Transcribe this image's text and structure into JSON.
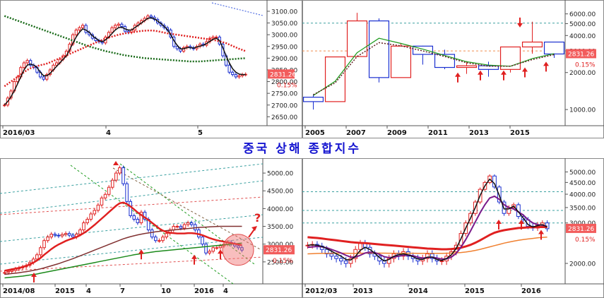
{
  "title": "중국 상해 종합지수",
  "colors": {
    "up": "#e02020",
    "down": "#1a2fd0",
    "price_box": "#f25c5c",
    "price_text": "#ffffff",
    "pct_text": "#e02020"
  },
  "chart_data": [
    {
      "id": "daily",
      "type": "candlestick",
      "x_ticks": [
        "2016/03",
        "4",
        "5"
      ],
      "y_ticks": [
        3100,
        3050,
        3000,
        2950,
        2900,
        2850,
        2800,
        2750,
        2700,
        2650
      ],
      "y_tick_labels": [
        "3100.00",
        "3050.00",
        "3000.00",
        "2950.00",
        "2900.00",
        "2850.00",
        "2800.00",
        "2750.00",
        "2700.00",
        "2650.00"
      ],
      "ylim": [
        2630,
        3130
      ],
      "last_price": "2831.26",
      "change_pct": "0.15%",
      "close": [
        2700,
        2730,
        2760,
        2800,
        2820,
        2860,
        2880,
        2890,
        2870,
        2860,
        2840,
        2820,
        2810,
        2830,
        2850,
        2870,
        2880,
        2895,
        2910,
        2930,
        2960,
        3000,
        3020,
        3030,
        3040,
        3010,
        3000,
        2985,
        2975,
        2970,
        2965,
        2990,
        3010,
        3030,
        3040,
        3045,
        3035,
        3015,
        3010,
        3020,
        3040,
        3050,
        3060,
        3070,
        3080,
        3075,
        3065,
        3050,
        3040,
        3030,
        3020,
        2990,
        2950,
        2940,
        2930,
        2945,
        2950,
        2945,
        2940,
        2950,
        2960,
        2955,
        2970,
        2985,
        2990,
        2990,
        2960,
        2910,
        2870,
        2840,
        2830,
        2820,
        2825,
        2830,
        2831.26
      ],
      "ma_black": [
        2700,
        2715,
        2735,
        2760,
        2790,
        2820,
        2850,
        2870,
        2875,
        2870,
        2860,
        2840,
        2825,
        2825,
        2835,
        2850,
        2865,
        2880,
        2895,
        2910,
        2935,
        2965,
        2990,
        3010,
        3025,
        3020,
        3010,
        2995,
        2985,
        2975,
        2970,
        2978,
        2990,
        3005,
        3020,
        3030,
        3032,
        3025,
        3020,
        3020,
        3030,
        3040,
        3050,
        3060,
        3070,
        3072,
        3068,
        3058,
        3048,
        3035,
        3022,
        3000,
        2975,
        2955,
        2940,
        2940,
        2945,
        2945,
        2943,
        2947,
        2952,
        2955,
        2962,
        2972,
        2980,
        2985,
        2975,
        2945,
        2910,
        2880,
        2855,
        2840,
        2832,
        2830,
        2830
      ],
      "ma_red": [
        2780,
        2790,
        2800,
        2810,
        2820,
        2830,
        2840,
        2850,
        2857,
        2862,
        2866,
        2870,
        2873,
        2877,
        2882,
        2888,
        2894,
        2900,
        2906,
        2912,
        2918,
        2924,
        2930,
        2936,
        2942,
        2948,
        2954,
        2960,
        2966,
        2972,
        2978,
        2984,
        2988,
        2992,
        2996,
        3000,
        3003,
        3006,
        3008,
        3010,
        3012,
        3014,
        3016,
        3017,
        3018,
        3018,
        3017,
        3015,
        3012,
        3009,
        3006,
        3004,
        3002,
        3000,
        2998,
        2996,
        2994,
        2992,
        2990,
        2988,
        2986,
        2984,
        2982,
        2980,
        2978,
        2975,
        2972,
        2968,
        2964,
        2958,
        2952,
        2946,
        2940,
        2935,
        2930
      ],
      "ma_green": [
        3080,
        3075,
        3070,
        3065,
        3060,
        3055,
        3050,
        3045,
        3040,
        3035,
        3030,
        3025,
        3020,
        3015,
        3010,
        3005,
        3000,
        2995,
        2990,
        2985,
        2980,
        2975,
        2970,
        2965,
        2960,
        2955,
        2950,
        2946,
        2942,
        2938,
        2934,
        2930,
        2927,
        2924,
        2921,
        2918,
        2915,
        2912,
        2910,
        2908,
        2906,
        2904,
        2902,
        2900,
        2899,
        2898,
        2897,
        2896,
        2895,
        2894,
        2893,
        2892,
        2891,
        2890,
        2889,
        2888,
        2887,
        2886,
        2886,
        2886,
        2886,
        2887,
        2888,
        2889,
        2890,
        2891,
        2892,
        2893,
        2894,
        2895,
        2896,
        2897,
        2898,
        2899,
        2900
      ]
    },
    {
      "id": "yearly",
      "type": "candlestick",
      "x_ticks": [
        "2005",
        "2007",
        "2009",
        "2011",
        "2013",
        "2015"
      ],
      "y_ticks": [
        6000,
        5000,
        4000,
        3000,
        2000,
        1000
      ],
      "y_tick_labels": [
        "6000.00",
        "5000.00",
        "4000.00",
        "3000.00",
        "2000.00",
        "1000.00"
      ],
      "log_scale": true,
      "ylim": [
        800,
        7000
      ],
      "last_price": "2831.26",
      "change_pct": "0.15%",
      "years": [
        2005,
        2006,
        2007,
        2008,
        2009,
        2010,
        2011,
        2012,
        2013,
        2014,
        2015,
        2016
      ],
      "ohlc": [
        [
          1260,
          1330,
          1000,
          1160
        ],
        [
          1160,
          2700,
          1150,
          2680
        ],
        [
          2700,
          6120,
          2700,
          5260
        ],
        [
          5260,
          5520,
          1660,
          1820
        ],
        [
          1820,
          3480,
          1840,
          3280
        ],
        [
          3280,
          3300,
          2320,
          2810
        ],
        [
          2810,
          3070,
          2130,
          2200
        ],
        [
          2200,
          2480,
          1950,
          2270
        ],
        [
          2270,
          2450,
          1850,
          2120
        ],
        [
          2120,
          3240,
          2000,
          3230
        ],
        [
          3230,
          5180,
          2850,
          3540
        ],
        [
          3540,
          3540,
          2630,
          2831
        ]
      ],
      "ma_green": [
        1300,
        1700,
        2900,
        3800,
        3450,
        3100,
        2750,
        2450,
        2300,
        2250,
        2600,
        2850
      ],
      "ma_dark": [
        1320,
        1650,
        2700,
        3500,
        3300,
        3000,
        2700,
        2400,
        2250,
        2250,
        2550,
        2800
      ],
      "hlines": [
        5050,
        3000
      ]
    },
    {
      "id": "weekly",
      "type": "candlestick",
      "x_ticks": [
        "2014/08",
        "2015",
        "4",
        "7",
        "10",
        "2016",
        "4"
      ],
      "y_ticks": [
        5000,
        4500,
        4000,
        3500,
        3000,
        2500
      ],
      "y_tick_labels": [
        "5000.00",
        "4500.00",
        "4000.00",
        "3500.00",
        "3000.00",
        "2500.00"
      ],
      "ylim": [
        2000,
        5300
      ],
      "last_price": "2831.26",
      "change_pct": "0.15%",
      "annotation": "?",
      "close": [
        2200,
        2230,
        2260,
        2300,
        2330,
        2360,
        2400,
        2480,
        2580,
        2700,
        2900,
        3100,
        3200,
        3280,
        3250,
        3230,
        3270,
        3300,
        3250,
        3200,
        3280,
        3400,
        3600,
        3700,
        3850,
        3950,
        4100,
        4300,
        4400,
        4600,
        4800,
        5000,
        5150,
        4700,
        4200,
        3800,
        3700,
        3600,
        3900,
        3700,
        3400,
        3200,
        3100,
        3100,
        3200,
        3300,
        3400,
        3500,
        3500,
        3450,
        3550,
        3600,
        3550,
        3400,
        3200,
        3000,
        2750,
        2800,
        2900,
        2900,
        2950,
        3000,
        3050,
        3000,
        2950,
        2900,
        2831
      ],
      "ma_red": [
        2250,
        2270,
        2290,
        2310,
        2330,
        2360,
        2390,
        2430,
        2480,
        2540,
        2610,
        2700,
        2780,
        2860,
        2930,
        2990,
        3040,
        3090,
        3130,
        3160,
        3200,
        3250,
        3310,
        3380,
        3460,
        3540,
        3630,
        3720,
        3810,
        3900,
        3990,
        4080,
        4150,
        4170,
        4130,
        4060,
        3980,
        3890,
        3820,
        3750,
        3680,
        3600,
        3520,
        3440,
        3380,
        3340,
        3320,
        3310,
        3300,
        3300,
        3300,
        3310,
        3310,
        3300,
        3280,
        3250,
        3210,
        3170,
        3140,
        3110,
        3090,
        3070,
        3050,
        3030,
        3010,
        2990,
        2970
      ],
      "ma_brown": [
        2150,
        2160,
        2170,
        2180,
        2195,
        2210,
        2225,
        2240,
        2260,
        2280,
        2305,
        2330,
        2360,
        2390,
        2420,
        2450,
        2485,
        2520,
        2555,
        2590,
        2630,
        2670,
        2710,
        2750,
        2790,
        2830,
        2870,
        2910,
        2950,
        2990,
        3030,
        3070,
        3110,
        3150,
        3180,
        3210,
        3235,
        3260,
        3280,
        3300,
        3315,
        3330,
        3345,
        3360,
        3370,
        3380,
        3390,
        3400,
        3410,
        3420,
        3430,
        3440,
        3450,
        3460,
        3470,
        3475,
        3480,
        3485,
        3490,
        3495,
        3500,
        3500,
        3500,
        3500,
        3500,
        3500,
        3500
      ],
      "ma_green": [
        2050,
        2060,
        2070,
        2080,
        2090,
        2100,
        2115,
        2130,
        2145,
        2160,
        2180,
        2200,
        2220,
        2240,
        2260,
        2280,
        2300,
        2320,
        2340,
        2360,
        2380,
        2400,
        2420,
        2440,
        2460,
        2480,
        2500,
        2520,
        2540,
        2560,
        2580,
        2600,
        2620,
        2640,
        2660,
        2680,
        2700,
        2715,
        2730,
        2745,
        2760,
        2775,
        2790,
        2800,
        2810,
        2820,
        2830,
        2840,
        2850,
        2860,
        2870,
        2880,
        2890,
        2900,
        2910,
        2920,
        2930,
        2940,
        2950,
        2960,
        2970,
        2980,
        2990,
        3000,
        3010,
        3020,
        3030
      ]
    },
    {
      "id": "monthly",
      "type": "candlestick",
      "x_ticks": [
        "2012/03",
        "2013",
        "2014",
        "2015",
        "2016"
      ],
      "y_ticks": [
        5000,
        4500,
        4000,
        3500,
        3000,
        2000
      ],
      "y_tick_labels": [
        "5000.00",
        "4500.00",
        "4000.00",
        "3500.00",
        "3000.00",
        "2000.00"
      ],
      "log_scale": true,
      "ylim": [
        1700,
        5500
      ],
      "last_price": "2831.26",
      "change_pct": "0.15%",
      "close": [
        2400,
        2420,
        2380,
        2300,
        2200,
        2150,
        2100,
        2050,
        2000,
        2100,
        2300,
        2450,
        2350,
        2200,
        2150,
        2050,
        2000,
        2100,
        2200,
        2150,
        2250,
        2150,
        2100,
        2050,
        2100,
        2200,
        2100,
        2050,
        2050,
        2150,
        2250,
        2400,
        2700,
        3000,
        3300,
        3700,
        4200,
        4500,
        4800,
        4300,
        3700,
        3300,
        3500,
        3600,
        3200,
        3100,
        2900,
        2850,
        2950,
        3000,
        2831
      ],
      "ma_black": [
        2400,
        2410,
        2400,
        2370,
        2320,
        2260,
        2200,
        2150,
        2080,
        2070,
        2150,
        2280,
        2350,
        2300,
        2220,
        2120,
        2050,
        2080,
        2150,
        2180,
        2200,
        2180,
        2140,
        2090,
        2080,
        2130,
        2130,
        2080,
        2060,
        2100,
        2180,
        2320,
        2560,
        2850,
        3150,
        3500,
        3950,
        4350,
        4650,
        4450,
        3950,
        3450,
        3450,
        3550,
        3350,
        3150,
        2950,
        2880,
        2920,
        2950,
        2880
      ],
      "ma_purple": [
        2350,
        2360,
        2370,
        2360,
        2340,
        2300,
        2260,
        2220,
        2170,
        2130,
        2130,
        2170,
        2220,
        2240,
        2230,
        2190,
        2140,
        2120,
        2130,
        2150,
        2170,
        2170,
        2160,
        2130,
        2110,
        2120,
        2130,
        2110,
        2090,
        2090,
        2130,
        2210,
        2350,
        2540,
        2770,
        3030,
        3320,
        3600,
        3850,
        3920,
        3800,
        3600,
        3500,
        3450,
        3350,
        3250,
        3100,
        3000,
        2950,
        2930,
        2900
      ],
      "ma_red": [
        2600,
        2590,
        2580,
        2565,
        2550,
        2535,
        2520,
        2505,
        2490,
        2475,
        2465,
        2455,
        2450,
        2440,
        2430,
        2420,
        2410,
        2400,
        2390,
        2380,
        2370,
        2360,
        2350,
        2340,
        2330,
        2320,
        2315,
        2310,
        2305,
        2305,
        2310,
        2320,
        2340,
        2370,
        2410,
        2460,
        2520,
        2590,
        2660,
        2720,
        2760,
        2790,
        2810,
        2830,
        2850,
        2860,
        2870,
        2875,
        2880,
        2880,
        2880
      ],
      "ma_orange": [
        2200,
        2205,
        2210,
        2212,
        2214,
        2215,
        2216,
        2216,
        2215,
        2214,
        2214,
        2215,
        2217,
        2218,
        2218,
        2217,
        2216,
        2215,
        2215,
        2215,
        2215,
        2215,
        2215,
        2214,
        2213,
        2213,
        2214,
        2214,
        2214,
        2215,
        2218,
        2222,
        2230,
        2242,
        2258,
        2278,
        2302,
        2330,
        2360,
        2390,
        2420,
        2450,
        2475,
        2500,
        2520,
        2540,
        2555,
        2570,
        2585,
        2595,
        2605
      ],
      "hlines": [
        4100,
        3400,
        3000
      ]
    }
  ]
}
